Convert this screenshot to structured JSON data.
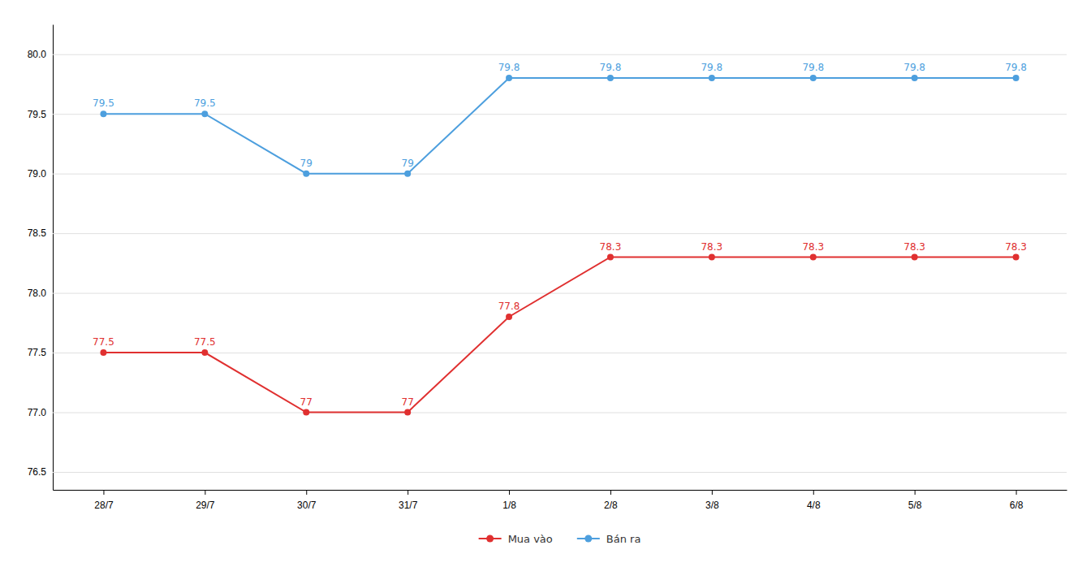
{
  "chart_data": {
    "type": "line",
    "categories": [
      "28/7",
      "29/7",
      "30/7",
      "31/7",
      "1/8",
      "2/8",
      "3/8",
      "4/8",
      "5/8",
      "6/8"
    ],
    "series": [
      {
        "name": "Mua vào",
        "color": "#e03030",
        "values": [
          77.5,
          77.5,
          77.0,
          77.0,
          77.8,
          78.3,
          78.3,
          78.3,
          78.3,
          78.3
        ]
      },
      {
        "name": "Bán ra",
        "color": "#4d9fde",
        "values": [
          79.5,
          79.5,
          79.0,
          79.0,
          79.8,
          79.8,
          79.8,
          79.8,
          79.8,
          79.8
        ]
      }
    ],
    "ylim": [
      76.35,
      80.25
    ],
    "yticks": [
      76.5,
      {
        "value": 77.0,
        "label": "77.0"
      },
      77.5,
      {
        "value": 78.0,
        "label": "78.0"
      },
      78.5,
      {
        "value": 79.0,
        "label": "79.0"
      },
      79.5,
      {
        "value": 80.0,
        "label": "80.0"
      }
    ],
    "grid": true,
    "legend": "bottom",
    "data_labels": true,
    "marker": "circle",
    "line_style": "solid"
  }
}
